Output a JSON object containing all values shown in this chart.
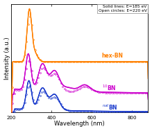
{
  "xlabel": "Wavelength (nm)",
  "ylabel": "Intensity (a.u.)",
  "xlim": [
    200,
    880
  ],
  "ylim": [
    0,
    6.0
  ],
  "legend_solid": "Solid lines: E=185 eV",
  "legend_open": "Open circles: E=220 eV",
  "colors": {
    "hex_bn": "#FF8000",
    "bn10": "#CC00CC",
    "natbn": "#1A3ACC"
  },
  "labels": {
    "hex_bn": "hex-BN",
    "bn10": "$^{10}$BN",
    "natbn": "$^{nat}$BN"
  },
  "background": "#ffffff",
  "offsets": {
    "hex_bn": 2.8,
    "bn10": 1.0,
    "natbn": 0.0
  }
}
